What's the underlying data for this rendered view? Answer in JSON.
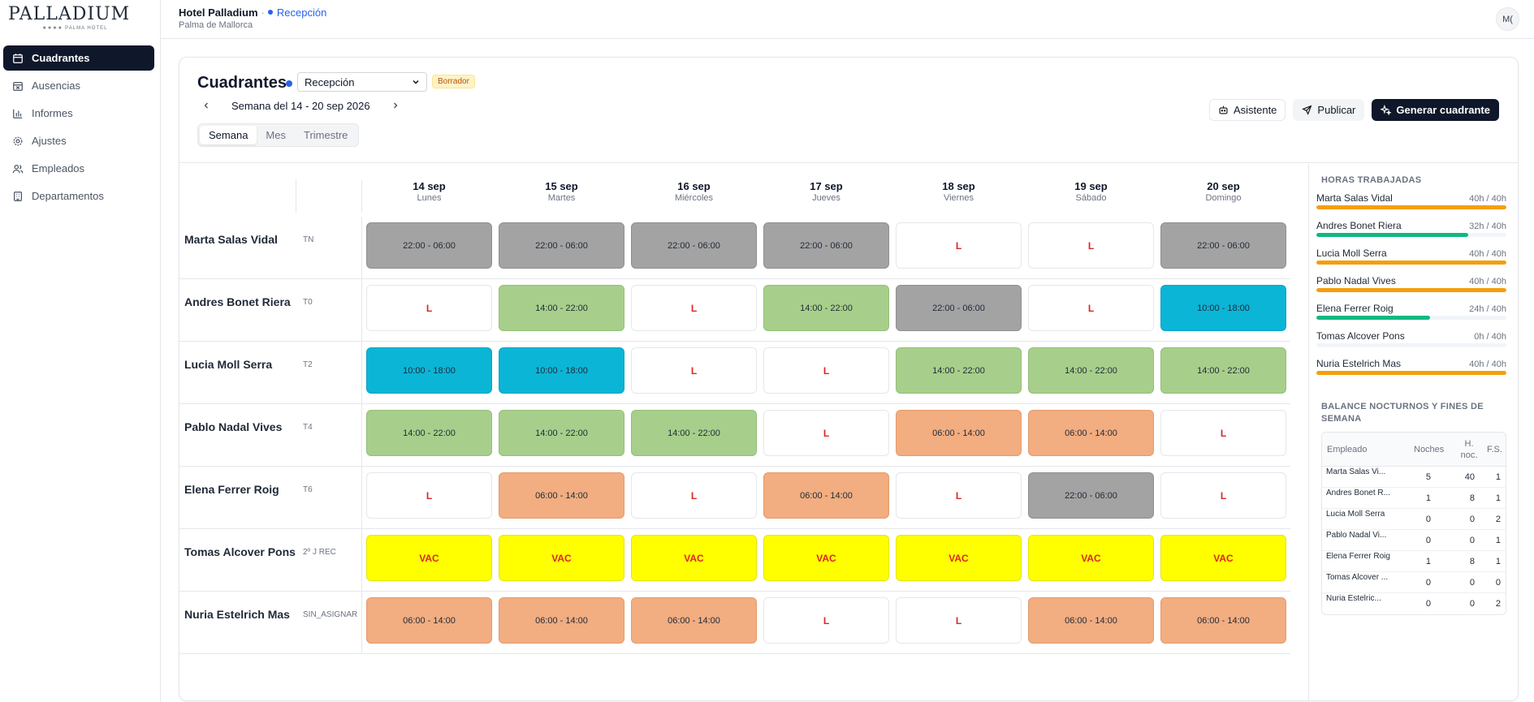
{
  "sidebar": {
    "logo_name": "PALLADIUM",
    "logo_sub": "★★★★ PALMA HOTEL",
    "items": [
      {
        "label": "Cuadrantes",
        "icon": "calendar-icon",
        "active": true
      },
      {
        "label": "Ausencias",
        "icon": "calendar-x-icon",
        "active": false
      },
      {
        "label": "Informes",
        "icon": "bar-chart-icon",
        "active": false
      },
      {
        "label": "Ajustes",
        "icon": "gear-icon",
        "active": false
      },
      {
        "label": "Empleados",
        "icon": "users-icon",
        "active": false
      },
      {
        "label": "Departamentos",
        "icon": "building-icon",
        "active": false
      }
    ]
  },
  "header": {
    "hotel": "Hotel Palladium",
    "separator": "·",
    "department": "Recepción",
    "city": "Palma de Mallorca",
    "avatar": "M("
  },
  "main": {
    "title": "Cuadrantes",
    "dept_select": "Recepción",
    "status_badge": "Borrador",
    "week_label": "Semana del 14 - 20 sep 2026",
    "tabs": [
      {
        "label": "Semana",
        "active": true
      },
      {
        "label": "Mes",
        "active": false
      },
      {
        "label": "Trimestre",
        "active": false
      }
    ],
    "buttons": {
      "assistant": "Asistente",
      "publish": "Publicar",
      "generate": "Generar cuadrante"
    }
  },
  "days": [
    {
      "date": "14 sep",
      "weekday": "Lunes"
    },
    {
      "date": "15 sep",
      "weekday": "Martes"
    },
    {
      "date": "16 sep",
      "weekday": "Miércoles"
    },
    {
      "date": "17 sep",
      "weekday": "Jueves"
    },
    {
      "date": "18 sep",
      "weekday": "Viernes"
    },
    {
      "date": "19 sep",
      "weekday": "Sábado"
    },
    {
      "date": "20 sep",
      "weekday": "Domingo"
    }
  ],
  "employees": [
    {
      "name": "Marta Salas Vidal",
      "code": "TN",
      "shifts": [
        {
          "label": "22:00 - 06:00",
          "type": "n"
        },
        {
          "label": "22:00 - 06:00",
          "type": "n"
        },
        {
          "label": "22:00 - 06:00",
          "type": "n"
        },
        {
          "label": "22:00 - 06:00",
          "type": "n"
        },
        {
          "label": "L",
          "type": "l"
        },
        {
          "label": "L",
          "type": "l"
        },
        {
          "label": "22:00 - 06:00",
          "type": "n"
        }
      ]
    },
    {
      "name": "Andres Bonet Riera",
      "code": "T0",
      "shifts": [
        {
          "label": "L",
          "type": "l"
        },
        {
          "label": "14:00 - 22:00",
          "type": "t"
        },
        {
          "label": "L",
          "type": "l"
        },
        {
          "label": "14:00 - 22:00",
          "type": "t"
        },
        {
          "label": "22:00 - 06:00",
          "type": "n"
        },
        {
          "label": "L",
          "type": "l"
        },
        {
          "label": "10:00 - 18:00",
          "type": "c"
        }
      ]
    },
    {
      "name": "Lucia Moll Serra",
      "code": "T2",
      "shifts": [
        {
          "label": "10:00 - 18:00",
          "type": "c"
        },
        {
          "label": "10:00 - 18:00",
          "type": "c"
        },
        {
          "label": "L",
          "type": "l"
        },
        {
          "label": "L",
          "type": "l"
        },
        {
          "label": "14:00 - 22:00",
          "type": "t"
        },
        {
          "label": "14:00 - 22:00",
          "type": "t"
        },
        {
          "label": "14:00 - 22:00",
          "type": "t"
        }
      ]
    },
    {
      "name": "Pablo Nadal Vives",
      "code": "T4",
      "shifts": [
        {
          "label": "14:00 - 22:00",
          "type": "t"
        },
        {
          "label": "14:00 - 22:00",
          "type": "t"
        },
        {
          "label": "14:00 - 22:00",
          "type": "t"
        },
        {
          "label": "L",
          "type": "l"
        },
        {
          "label": "06:00 - 14:00",
          "type": "m"
        },
        {
          "label": "06:00 - 14:00",
          "type": "m"
        },
        {
          "label": "L",
          "type": "l"
        }
      ]
    },
    {
      "name": "Elena Ferrer Roig",
      "code": "T6",
      "shifts": [
        {
          "label": "L",
          "type": "l"
        },
        {
          "label": "06:00 - 14:00",
          "type": "m"
        },
        {
          "label": "L",
          "type": "l"
        },
        {
          "label": "06:00 - 14:00",
          "type": "m"
        },
        {
          "label": "L",
          "type": "l"
        },
        {
          "label": "22:00 - 06:00",
          "type": "n"
        },
        {
          "label": "L",
          "type": "l"
        }
      ]
    },
    {
      "name": "Tomas Alcover Pons",
      "code": "2º J REC",
      "shifts": [
        {
          "label": "VAC",
          "type": "v"
        },
        {
          "label": "VAC",
          "type": "v"
        },
        {
          "label": "VAC",
          "type": "v"
        },
        {
          "label": "VAC",
          "type": "v"
        },
        {
          "label": "VAC",
          "type": "v"
        },
        {
          "label": "VAC",
          "type": "v"
        },
        {
          "label": "VAC",
          "type": "v"
        }
      ]
    },
    {
      "name": "Nuria Estelrich Mas",
      "code": "SIN_ASIGNAR",
      "shifts": [
        {
          "label": "06:00 - 14:00",
          "type": "m"
        },
        {
          "label": "06:00 - 14:00",
          "type": "m"
        },
        {
          "label": "06:00 - 14:00",
          "type": "m"
        },
        {
          "label": "L",
          "type": "l"
        },
        {
          "label": "L",
          "type": "l"
        },
        {
          "label": "06:00 - 14:00",
          "type": "m"
        },
        {
          "label": "06:00 - 14:00",
          "type": "m"
        }
      ]
    }
  ],
  "shift_colors": {
    "n": "#a3a3a3",
    "t": "#a7cf8b",
    "m": "#f2ad80",
    "c": "#0bb5d6",
    "l": "#ffffff",
    "v": "#ffff00"
  },
  "hours_panel": {
    "title": "HORAS TRABAJADAS",
    "rows": [
      {
        "name": "Marta Salas Vidal",
        "value": "40h / 40h",
        "fraction": 1.0,
        "color": "#f59e0b"
      },
      {
        "name": "Andres Bonet Riera",
        "value": "32h / 40h",
        "fraction": 0.8,
        "color": "#10b981"
      },
      {
        "name": "Lucia Moll Serra",
        "value": "40h / 40h",
        "fraction": 1.0,
        "color": "#f59e0b"
      },
      {
        "name": "Pablo Nadal Vives",
        "value": "40h / 40h",
        "fraction": 1.0,
        "color": "#f59e0b"
      },
      {
        "name": "Elena Ferrer Roig",
        "value": "24h / 40h",
        "fraction": 0.6,
        "color": "#10b981"
      },
      {
        "name": "Tomas Alcover Pons",
        "value": "0h / 40h",
        "fraction": 0.0,
        "color": "#10b981"
      },
      {
        "name": "Nuria Estelrich Mas",
        "value": "40h / 40h",
        "fraction": 1.0,
        "color": "#f59e0b"
      }
    ]
  },
  "balance": {
    "title": "BALANCE NOCTURNOS Y FINES DE SEMANA",
    "headers": [
      "Empleado",
      "Noches",
      "H. noc.",
      "F.S."
    ],
    "rows": [
      {
        "name": "Marta Salas Vi...",
        "noches": "5",
        "hnoc": "40",
        "fs": "1"
      },
      {
        "name": "Andres Bonet R...",
        "noches": "1",
        "hnoc": "8",
        "fs": "1"
      },
      {
        "name": "Lucia Moll Serra",
        "noches": "0",
        "hnoc": "0",
        "fs": "2"
      },
      {
        "name": "Pablo Nadal Vi...",
        "noches": "0",
        "hnoc": "0",
        "fs": "1"
      },
      {
        "name": "Elena Ferrer Roig",
        "noches": "1",
        "hnoc": "8",
        "fs": "1"
      },
      {
        "name": "Tomas Alcover ...",
        "noches": "0",
        "hnoc": "0",
        "fs": "0"
      },
      {
        "name": "Nuria Estelric...",
        "noches": "0",
        "hnoc": "0",
        "fs": "2"
      }
    ]
  }
}
